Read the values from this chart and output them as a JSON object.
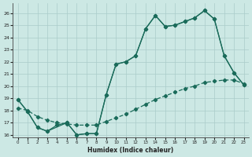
{
  "bg_color": "#cce8e4",
  "grid_color": "#aaccca",
  "line_color": "#1a6b5a",
  "xlabel": "Humidex (Indice chaleur)",
  "xlim": [
    -0.5,
    23.5
  ],
  "ylim": [
    15.8,
    26.8
  ],
  "xticks": [
    0,
    1,
    2,
    3,
    4,
    5,
    6,
    7,
    8,
    9,
    10,
    11,
    12,
    13,
    14,
    15,
    16,
    17,
    18,
    19,
    20,
    21,
    22,
    23
  ],
  "yticks": [
    16,
    17,
    18,
    19,
    20,
    21,
    22,
    23,
    24,
    25,
    26
  ],
  "line1_x": [
    0,
    1,
    2,
    3,
    4,
    5,
    6,
    7,
    8,
    9,
    10,
    11,
    12,
    13,
    14,
    15,
    16,
    17,
    18,
    19,
    20,
    21,
    22,
    23
  ],
  "line1_y": [
    18.9,
    17.9,
    16.6,
    16.3,
    16.8,
    17.0,
    16.0,
    16.1,
    16.1,
    19.3,
    21.8,
    22.0,
    22.5,
    24.7,
    25.8,
    24.9,
    25.0,
    25.3,
    25.6,
    26.2,
    25.5,
    22.5,
    21.1,
    20.1
  ],
  "line2_x": [
    0,
    1,
    2,
    3,
    4,
    5,
    6,
    7,
    8,
    9,
    10,
    11,
    12,
    13,
    14,
    15,
    16,
    17,
    18,
    19,
    20,
    21,
    22,
    23
  ],
  "line2_y": [
    18.2,
    18.0,
    17.5,
    17.2,
    17.0,
    16.9,
    16.8,
    16.8,
    16.8,
    17.1,
    17.4,
    17.7,
    18.1,
    18.5,
    18.9,
    19.2,
    19.5,
    19.8,
    20.0,
    20.3,
    20.4,
    20.5,
    20.5,
    20.2
  ],
  "line3_x": [
    0,
    1,
    2,
    3,
    5,
    6,
    7,
    8,
    9,
    10,
    11,
    12,
    13,
    14,
    15,
    16,
    17,
    18,
    19,
    20,
    21,
    22,
    23
  ],
  "line3_y": [
    18.9,
    17.9,
    16.6,
    16.3,
    17.0,
    16.0,
    16.1,
    16.1,
    19.3,
    21.8,
    22.0,
    22.5,
    24.7,
    25.8,
    24.9,
    25.0,
    25.3,
    25.6,
    26.2,
    25.5,
    22.5,
    21.1,
    20.1
  ]
}
